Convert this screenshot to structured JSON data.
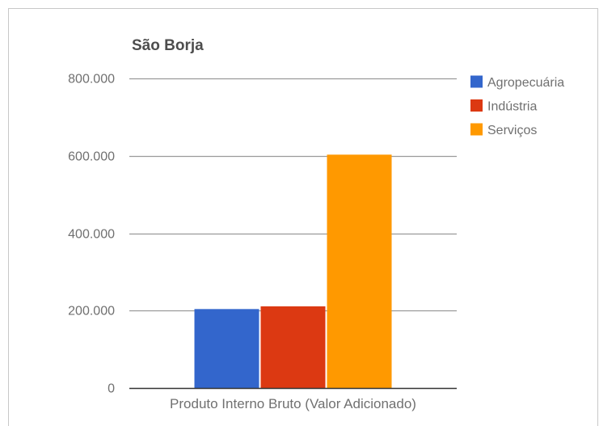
{
  "chart_data": {
    "type": "bar",
    "title": "São Borja",
    "categories": [
      "Produto Interno Bruto (Valor Adicionado)"
    ],
    "series": [
      {
        "name": "Agropecuária",
        "values": [
          204000
        ],
        "color": "#3366cc"
      },
      {
        "name": "Indústria",
        "values": [
          211000
        ],
        "color": "#dc3912"
      },
      {
        "name": "Serviços",
        "values": [
          603000
        ],
        "color": "#ff9900"
      }
    ],
    "ytick_values": [
      0,
      200000,
      400000,
      600000,
      800000
    ],
    "yticks": [
      "0",
      "200.000",
      "400.000",
      "600.000",
      "800.000"
    ],
    "ylim": [
      0,
      800000
    ],
    "xlabel": "",
    "ylabel": "",
    "grid": true,
    "legend": "right"
  }
}
